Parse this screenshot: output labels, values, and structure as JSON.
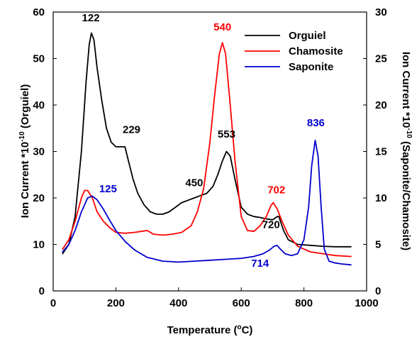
{
  "chart_data": {
    "type": "line",
    "title": "",
    "xlabel": "Temperature (°C)",
    "ylabel_left": "Ion Current *10-10 (Orguiel)",
    "ylabel_right": "Ion Current *10-10 (Saponite/Chamosite)",
    "xlabel_parts": {
      "pre": "Temperature (",
      "sup": "o",
      "post": "C)"
    },
    "ylabel_left_parts": {
      "pre": "Ion Current *10",
      "sup": "-10",
      "post": " (Orguiel)"
    },
    "ylabel_right_parts": {
      "pre": "Ion Current *10",
      "sup": "-10",
      "post": " (Saponite/Chamosite)"
    },
    "xlim": [
      0,
      1000
    ],
    "ylim_left": [
      0,
      60
    ],
    "ylim_right": [
      0,
      30
    ],
    "xticks": [
      "0",
      "200",
      "400",
      "600",
      "800",
      "1000"
    ],
    "yticks_left": [
      "0",
      "10",
      "20",
      "30",
      "40",
      "50",
      "60"
    ],
    "yticks_right": [
      "0",
      "5",
      "10",
      "15",
      "20",
      "25",
      "30"
    ],
    "legend_position": "top-right",
    "series": [
      {
        "name": "Orguiel",
        "color": "#000000",
        "axis": "left",
        "x": [
          30,
          50,
          70,
          90,
          105,
          115,
          122,
          130,
          140,
          155,
          170,
          185,
          200,
          215,
          229,
          240,
          255,
          270,
          290,
          310,
          330,
          350,
          370,
          390,
          410,
          430,
          450,
          470,
          490,
          510,
          525,
          540,
          553,
          565,
          580,
          600,
          620,
          640,
          660,
          680,
          700,
          715,
          720,
          735,
          750,
          780,
          820,
          860,
          900,
          950
        ],
        "y": [
          8,
          10,
          16,
          30,
          45,
          53,
          55.5,
          54,
          48,
          41,
          35,
          32,
          31,
          31,
          31,
          28,
          24,
          21,
          18.5,
          17,
          16.5,
          16.5,
          17,
          18,
          19,
          19.5,
          20,
          20.5,
          21,
          22.5,
          25,
          28,
          30,
          29,
          24,
          18,
          16.5,
          16,
          15.8,
          15.5,
          15.3,
          16,
          16,
          13,
          11,
          10,
          9.8,
          9.6,
          9.5,
          9.5
        ]
      },
      {
        "name": "Chamosite",
        "color": "#ff0000",
        "axis": "right",
        "x": [
          30,
          50,
          70,
          90,
          100,
          110,
          125,
          140,
          160,
          180,
          200,
          230,
          260,
          280,
          300,
          320,
          350,
          380,
          410,
          440,
          460,
          480,
          500,
          515,
          530,
          540,
          550,
          565,
          580,
          600,
          620,
          640,
          660,
          680,
          695,
          702,
          715,
          730,
          750,
          780,
          820,
          860,
          900,
          950
        ],
        "y": [
          4.5,
          5.5,
          7.5,
          10,
          10.8,
          10.8,
          10,
          8.5,
          7.5,
          6.8,
          6.3,
          6.2,
          6.3,
          6.4,
          6.5,
          6.1,
          6.0,
          6.1,
          6.3,
          7.0,
          8.5,
          11,
          16,
          21,
          25.5,
          26.7,
          25.5,
          20,
          14,
          8,
          6.5,
          6.4,
          7.0,
          8.0,
          9.2,
          9.5,
          8.8,
          7.5,
          6.0,
          4.8,
          4.2,
          4.0,
          3.8,
          3.7
        ]
      },
      {
        "name": "Saponite",
        "color": "#0000cc",
        "axis": "right",
        "x": [
          30,
          50,
          70,
          90,
          110,
          125,
          140,
          160,
          180,
          200,
          230,
          260,
          300,
          350,
          400,
          450,
          500,
          550,
          600,
          640,
          670,
          690,
          705,
          714,
          725,
          740,
          760,
          780,
          800,
          815,
          825,
          836,
          845,
          855,
          865,
          880,
          900,
          920,
          950
        ],
        "y": [
          4.2,
          5,
          6.5,
          8.5,
          10,
          10.2,
          9.8,
          8.8,
          7.6,
          6.5,
          5.3,
          4.4,
          3.6,
          3.2,
          3.1,
          3.2,
          3.3,
          3.4,
          3.5,
          3.7,
          4.0,
          4.4,
          4.8,
          4.9,
          4.5,
          4.0,
          3.8,
          4.0,
          5.5,
          9.0,
          13.5,
          16.2,
          14.5,
          9.0,
          4.5,
          3.2,
          3.0,
          2.9,
          2.8
        ]
      }
    ],
    "annotations": [
      {
        "text": "122",
        "x": 120,
        "y": 58,
        "axis": "left",
        "color": "#000000"
      },
      {
        "text": "229",
        "x": 250,
        "y": 34,
        "axis": "left",
        "color": "#000000"
      },
      {
        "text": "450",
        "x": 450,
        "y": 22.5,
        "axis": "left",
        "color": "#000000"
      },
      {
        "text": "553",
        "x": 553,
        "y": 33,
        "axis": "left",
        "color": "#000000"
      },
      {
        "text": "720",
        "x": 695,
        "y": 13.5,
        "axis": "left",
        "color": "#000000"
      },
      {
        "text": "540",
        "x": 540,
        "y": 28,
        "axis": "right",
        "color": "#ff0000"
      },
      {
        "text": "702",
        "x": 712,
        "y": 10.5,
        "axis": "right",
        "color": "#ff0000"
      },
      {
        "text": "836",
        "x": 838,
        "y": 17.7,
        "axis": "right",
        "color": "#0000cc"
      },
      {
        "text": "125",
        "x": 175,
        "y": 10.6,
        "axis": "right",
        "color": "#0000cc"
      },
      {
        "text": "714",
        "x": 660,
        "y": 2.6,
        "axis": "right",
        "color": "#0000cc"
      }
    ]
  }
}
